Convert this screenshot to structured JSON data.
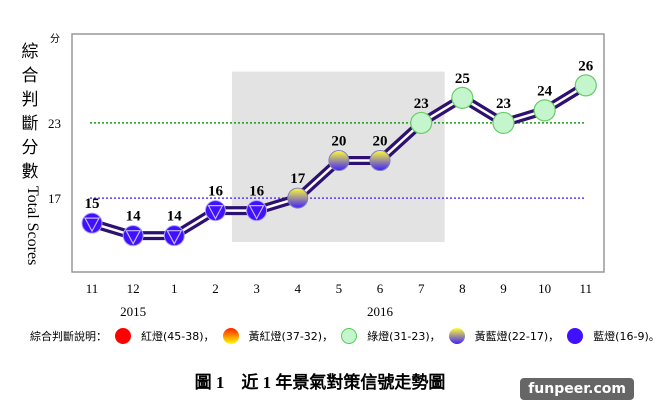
{
  "chart_data": {
    "type": "line",
    "title": "",
    "ylabel": "綜合判斷分數",
    "ylabel_en": "Total Scores",
    "y_unit": "分",
    "ylim": [
      11.1,
      30.1
    ],
    "yticks": [
      "23",
      "17"
    ],
    "reference_lines": [
      {
        "value": 23,
        "color": "#1a9a1a"
      },
      {
        "value": 17,
        "color": "#5a3cff"
      }
    ],
    "categories": [
      "11",
      "12",
      "1",
      "2",
      "3",
      "4",
      "5",
      "6",
      "7",
      "8",
      "9",
      "10",
      "11"
    ],
    "years": [
      {
        "label": "2015",
        "at_index": 1
      },
      {
        "label": "2016",
        "at_index": 7
      }
    ],
    "values": [
      15,
      14,
      14,
      16,
      16,
      17,
      20,
      20,
      23,
      25,
      23,
      24,
      26
    ],
    "shaded_region": {
      "from_index": 3.4,
      "to_index": 8.57,
      "y_from": 13.5,
      "y_to": 27.1
    },
    "line_color": "#2e1070"
  },
  "legend": {
    "title": "綜合判斷說明：",
    "items": [
      {
        "label": "紅燈(45-38)，",
        "type": "red"
      },
      {
        "label": "黃紅燈(37-32)，",
        "type": "yellow-red"
      },
      {
        "label": "綠燈(31-23)，",
        "type": "green"
      },
      {
        "label": "黃藍燈(22-17)，",
        "type": "yellow-blue"
      },
      {
        "label": "藍燈(16-9)。",
        "type": "blue"
      }
    ]
  },
  "caption": "圖 1　近 1 年景氣對策信號走勢圖",
  "watermark": "funpeer.com"
}
